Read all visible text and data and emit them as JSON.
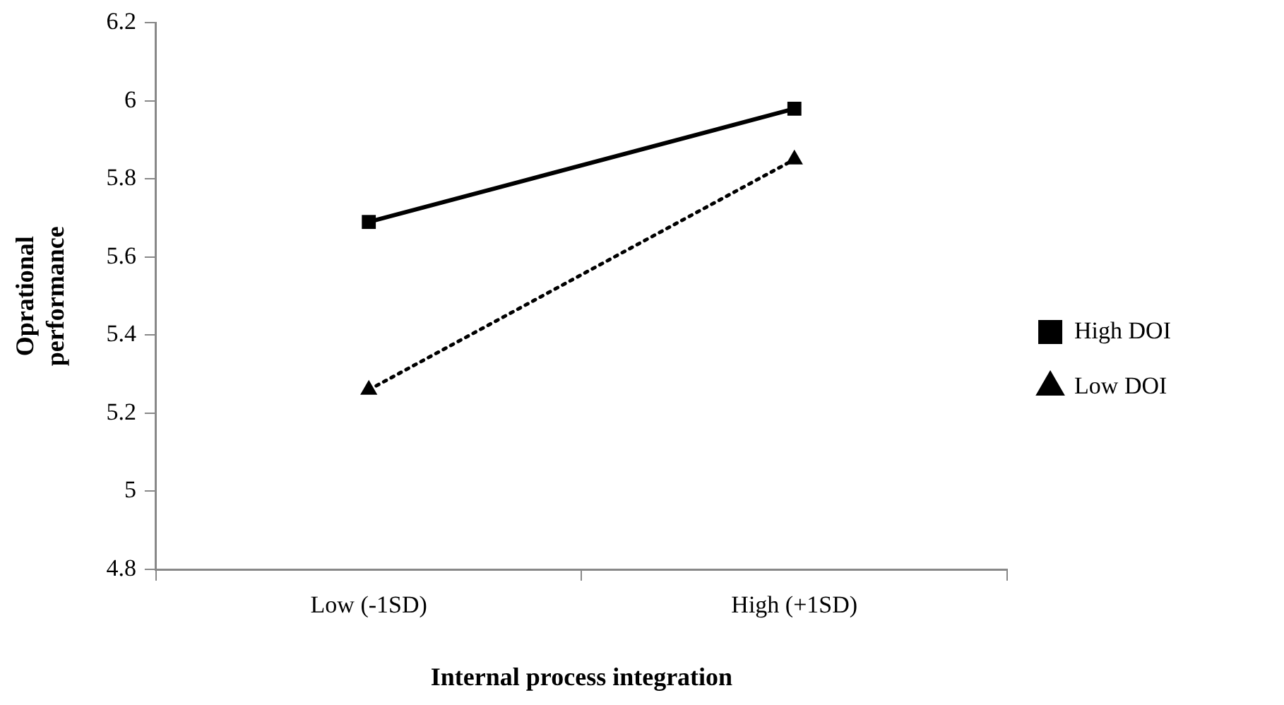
{
  "chart_data": {
    "type": "line",
    "xlabel": "Internal process integration",
    "ylabel": "Oprational performance",
    "categories": [
      "Low (-1SD)",
      "High (+1SD)"
    ],
    "series": [
      {
        "name": "High DOI",
        "color": "#000000",
        "values": [
          5.69,
          5.98
        ],
        "marker": "square",
        "line_style": "solid"
      },
      {
        "name": "Low DOI",
        "color": "#000000",
        "values": [
          5.26,
          5.85
        ],
        "marker": "triangle",
        "line_style": "dotted"
      }
    ],
    "ylim": [
      4.8,
      6.2
    ],
    "yticks": [
      4.8,
      5,
      5.2,
      5.4,
      5.6,
      5.8,
      6,
      6.2
    ],
    "grid": false,
    "legend": "right"
  }
}
